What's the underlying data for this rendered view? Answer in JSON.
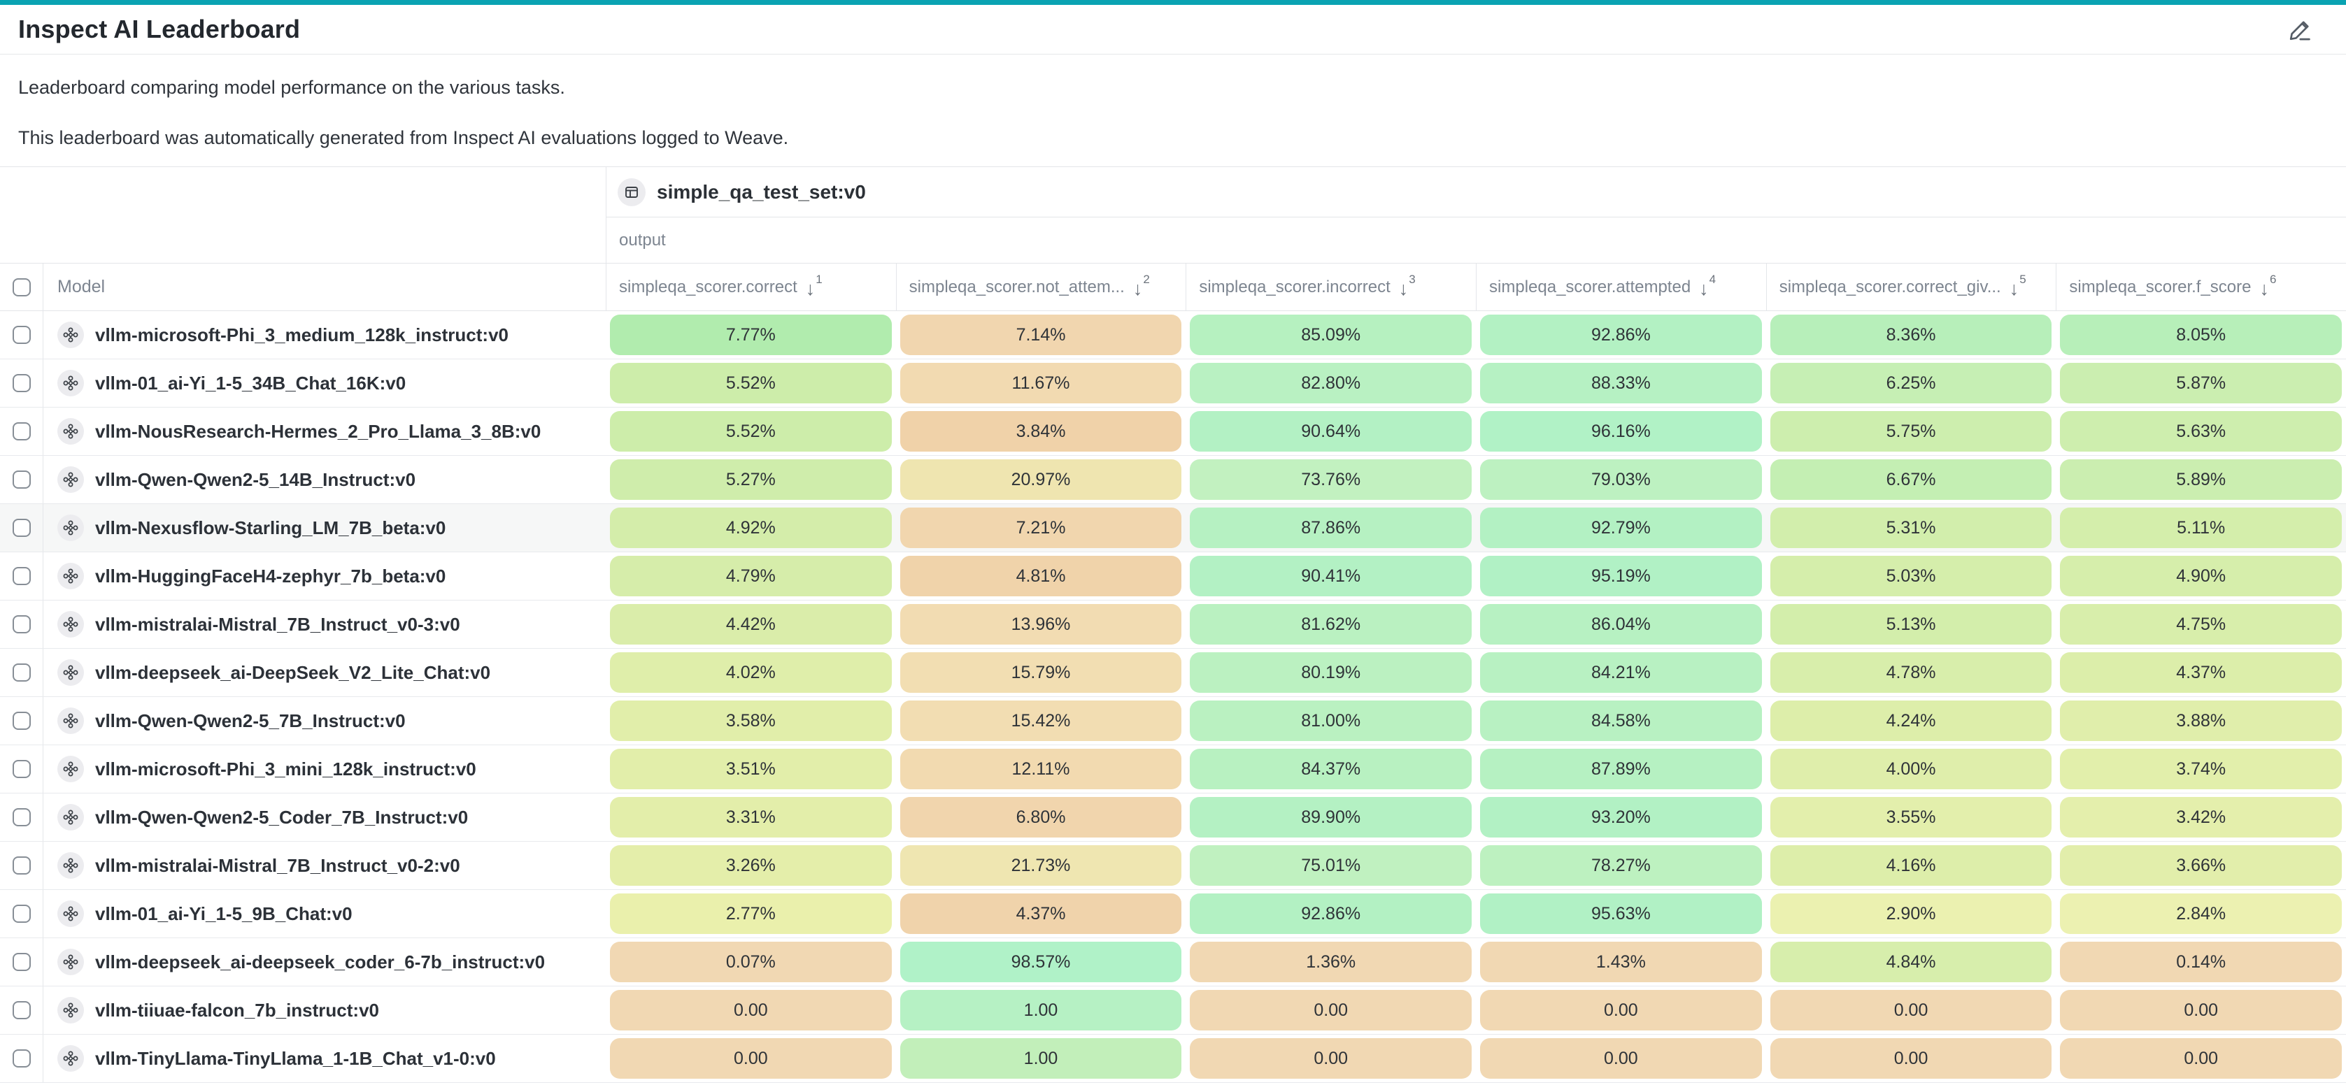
{
  "page": {
    "title": "Inspect AI Leaderboard",
    "description_lines": [
      "Leaderboard comparing model performance on the various tasks.",
      "This leaderboard was automatically generated from Inspect AI evaluations logged to Weave."
    ]
  },
  "colors": {
    "accent_bar": "#0aa3b2",
    "header_text": "#7d8590",
    "row_hover": "#f6f7f7"
  },
  "table": {
    "group_header": "simple_qa_test_set:v0",
    "sub_header": "output",
    "model_column_label": "Model",
    "columns": [
      {
        "label": "simpleqa_scorer.correct",
        "sort_order": "1"
      },
      {
        "label": "simpleqa_scorer.not_attem...",
        "sort_order": "2"
      },
      {
        "label": "simpleqa_scorer.incorrect",
        "sort_order": "3"
      },
      {
        "label": "simpleqa_scorer.attempted",
        "sort_order": "4"
      },
      {
        "label": "simpleqa_scorer.correct_giv...",
        "sort_order": "5"
      },
      {
        "label": "simpleqa_scorer.f_score",
        "sort_order": "6"
      }
    ],
    "rows": [
      {
        "model": "vllm-microsoft-Phi_3_medium_128k_instruct:v0",
        "highlighted": false,
        "cells": [
          {
            "text": "7.77%",
            "bg": "#b1ecae"
          },
          {
            "text": "7.14%",
            "bg": "#f1d6af"
          },
          {
            "text": "85.09%",
            "bg": "#b6f1c0"
          },
          {
            "text": "92.86%",
            "bg": "#b3f1c3"
          },
          {
            "text": "8.36%",
            "bg": "#b7efba"
          },
          {
            "text": "8.05%",
            "bg": "#b7efb9"
          }
        ]
      },
      {
        "model": "vllm-01_ai-Yi_1-5_34B_Chat_16K:v0",
        "highlighted": false,
        "cells": [
          {
            "text": "5.52%",
            "bg": "#cdedaa"
          },
          {
            "text": "11.67%",
            "bg": "#f2dab1"
          },
          {
            "text": "82.80%",
            "bg": "#b9f1c2"
          },
          {
            "text": "88.33%",
            "bg": "#b6f1c3"
          },
          {
            "text": "6.25%",
            "bg": "#c6efb4"
          },
          {
            "text": "5.87%",
            "bg": "#cbeeb0"
          }
        ]
      },
      {
        "model": "vllm-NousResearch-Hermes_2_Pro_Llama_3_8B:v0",
        "highlighted": false,
        "cells": [
          {
            "text": "5.52%",
            "bg": "#cdedaa"
          },
          {
            "text": "3.84%",
            "bg": "#f0d2a9"
          },
          {
            "text": "90.64%",
            "bg": "#b3f1c4"
          },
          {
            "text": "96.16%",
            "bg": "#b1f2c6"
          },
          {
            "text": "5.75%",
            "bg": "#cdeeae"
          },
          {
            "text": "5.63%",
            "bg": "#ceeeae"
          }
        ]
      },
      {
        "model": "vllm-Qwen-Qwen2-5_14B_Instruct:v0",
        "highlighted": false,
        "cells": [
          {
            "text": "5.27%",
            "bg": "#cfedab"
          },
          {
            "text": "20.97%",
            "bg": "#efe5b0"
          },
          {
            "text": "73.76%",
            "bg": "#c2f1c0"
          },
          {
            "text": "79.03%",
            "bg": "#bdf1c1"
          },
          {
            "text": "6.67%",
            "bg": "#c4efb3"
          },
          {
            "text": "5.89%",
            "bg": "#cbeeb0"
          }
        ]
      },
      {
        "model": "vllm-Nexusflow-Starling_LM_7B_beta:v0",
        "highlighted": true,
        "cells": [
          {
            "text": "4.92%",
            "bg": "#d4edaa"
          },
          {
            "text": "7.21%",
            "bg": "#f1d6ae"
          },
          {
            "text": "87.86%",
            "bg": "#b6f1c2"
          },
          {
            "text": "92.79%",
            "bg": "#b3f1c3"
          },
          {
            "text": "5.31%",
            "bg": "#d2eeac"
          },
          {
            "text": "5.11%",
            "bg": "#d4eeab"
          }
        ]
      },
      {
        "model": "vllm-HuggingFaceH4-zephyr_7b_beta:v0",
        "highlighted": false,
        "cells": [
          {
            "text": "4.79%",
            "bg": "#d6edaa"
          },
          {
            "text": "4.81%",
            "bg": "#f0d3aa"
          },
          {
            "text": "90.41%",
            "bg": "#b3f1c4"
          },
          {
            "text": "95.19%",
            "bg": "#b1f1c5"
          },
          {
            "text": "5.03%",
            "bg": "#d5eeab"
          },
          {
            "text": "4.90%",
            "bg": "#d6eeab"
          }
        ]
      },
      {
        "model": "vllm-mistralai-Mistral_7B_Instruct_v0-3:v0",
        "highlighted": false,
        "cells": [
          {
            "text": "4.42%",
            "bg": "#daedaa"
          },
          {
            "text": "13.96%",
            "bg": "#f2dcb2"
          },
          {
            "text": "81.62%",
            "bg": "#baf1c1"
          },
          {
            "text": "86.04%",
            "bg": "#b7f1c2"
          },
          {
            "text": "5.13%",
            "bg": "#d3eeab"
          },
          {
            "text": "4.75%",
            "bg": "#d8eeab"
          }
        ]
      },
      {
        "model": "vllm-deepseek_ai-DeepSeek_V2_Lite_Chat:v0",
        "highlighted": false,
        "cells": [
          {
            "text": "4.02%",
            "bg": "#dfeeaa"
          },
          {
            "text": "15.79%",
            "bg": "#f2deb2"
          },
          {
            "text": "80.19%",
            "bg": "#bbf1c1"
          },
          {
            "text": "84.21%",
            "bg": "#b8f1c2"
          },
          {
            "text": "4.78%",
            "bg": "#d8eeab"
          },
          {
            "text": "4.37%",
            "bg": "#dceeaa"
          }
        ]
      },
      {
        "model": "vllm-Qwen-Qwen2-5_7B_Instruct:v0",
        "highlighted": false,
        "cells": [
          {
            "text": "3.58%",
            "bg": "#e1eeaa"
          },
          {
            "text": "15.42%",
            "bg": "#f2ddb2"
          },
          {
            "text": "81.00%",
            "bg": "#baf1c1"
          },
          {
            "text": "84.58%",
            "bg": "#b8f1c2"
          },
          {
            "text": "4.24%",
            "bg": "#ddeeaa"
          },
          {
            "text": "3.88%",
            "bg": "#e0eeab"
          }
        ]
      },
      {
        "model": "vllm-microsoft-Phi_3_mini_128k_instruct:v0",
        "highlighted": false,
        "cells": [
          {
            "text": "3.51%",
            "bg": "#e2eeaa"
          },
          {
            "text": "12.11%",
            "bg": "#f2dab0"
          },
          {
            "text": "84.37%",
            "bg": "#b8f1c1"
          },
          {
            "text": "87.89%",
            "bg": "#b6f1c2"
          },
          {
            "text": "4.00%",
            "bg": "#dfeeab"
          },
          {
            "text": "3.74%",
            "bg": "#e2efab"
          }
        ]
      },
      {
        "model": "vllm-Qwen-Qwen2-5_Coder_7B_Instruct:v0",
        "highlighted": false,
        "cells": [
          {
            "text": "3.31%",
            "bg": "#e3eeaa"
          },
          {
            "text": "6.80%",
            "bg": "#f1d5ad"
          },
          {
            "text": "89.90%",
            "bg": "#b4f1c3"
          },
          {
            "text": "93.20%",
            "bg": "#b2f1c4"
          },
          {
            "text": "3.55%",
            "bg": "#e3efac"
          },
          {
            "text": "3.42%",
            "bg": "#e4efac"
          }
        ]
      },
      {
        "model": "vllm-mistralai-Mistral_7B_Instruct_v0-2:v0",
        "highlighted": false,
        "cells": [
          {
            "text": "3.26%",
            "bg": "#e4eeaa"
          },
          {
            "text": "21.73%",
            "bg": "#efe6b1"
          },
          {
            "text": "75.01%",
            "bg": "#c0f1c0"
          },
          {
            "text": "78.27%",
            "bg": "#bdf1c0"
          },
          {
            "text": "4.16%",
            "bg": "#ddeeaa"
          },
          {
            "text": "3.66%",
            "bg": "#e2eeab"
          }
        ]
      },
      {
        "model": "vllm-01_ai-Yi_1-5_9B_Chat:v0",
        "highlighted": false,
        "cells": [
          {
            "text": "2.77%",
            "bg": "#eaf0ac"
          },
          {
            "text": "4.37%",
            "bg": "#f0d3ab"
          },
          {
            "text": "92.86%",
            "bg": "#b3f1c3"
          },
          {
            "text": "95.63%",
            "bg": "#b1f1c5"
          },
          {
            "text": "2.90%",
            "bg": "#ebf1b0"
          },
          {
            "text": "2.84%",
            "bg": "#ecf1b1"
          }
        ]
      },
      {
        "model": "vllm-deepseek_ai-deepseek_coder_6-7b_instruct:v0",
        "highlighted": false,
        "cells": [
          {
            "text": "0.07%",
            "bg": "#f1d8b3"
          },
          {
            "text": "98.57%",
            "bg": "#b0f2c8"
          },
          {
            "text": "1.36%",
            "bg": "#f1d8b3"
          },
          {
            "text": "1.43%",
            "bg": "#f1d8b3"
          },
          {
            "text": "4.84%",
            "bg": "#d7eeac"
          },
          {
            "text": "0.14%",
            "bg": "#f1d8b3"
          }
        ]
      },
      {
        "model": "vllm-tiiuae-falcon_7b_instruct:v0",
        "highlighted": false,
        "cells": [
          {
            "text": "0.00",
            "bg": "#f1d8b3"
          },
          {
            "text": "1.00",
            "bg": "#b6f1c4"
          },
          {
            "text": "0.00",
            "bg": "#f1d8b3"
          },
          {
            "text": "0.00",
            "bg": "#f1d8b3"
          },
          {
            "text": "0.00",
            "bg": "#f1d8b3"
          },
          {
            "text": "0.00",
            "bg": "#f1d8b3"
          }
        ]
      },
      {
        "model": "vllm-TinyLlama-TinyLlama_1-1B_Chat_v1-0:v0",
        "highlighted": false,
        "cells": [
          {
            "text": "0.00",
            "bg": "#f1d8b3"
          },
          {
            "text": "1.00",
            "bg": "#c2efba"
          },
          {
            "text": "0.00",
            "bg": "#f1d8b3"
          },
          {
            "text": "0.00",
            "bg": "#f1d8b3"
          },
          {
            "text": "0.00",
            "bg": "#f1d8b3"
          },
          {
            "text": "0.00",
            "bg": "#f1d8b3"
          }
        ]
      }
    ]
  }
}
